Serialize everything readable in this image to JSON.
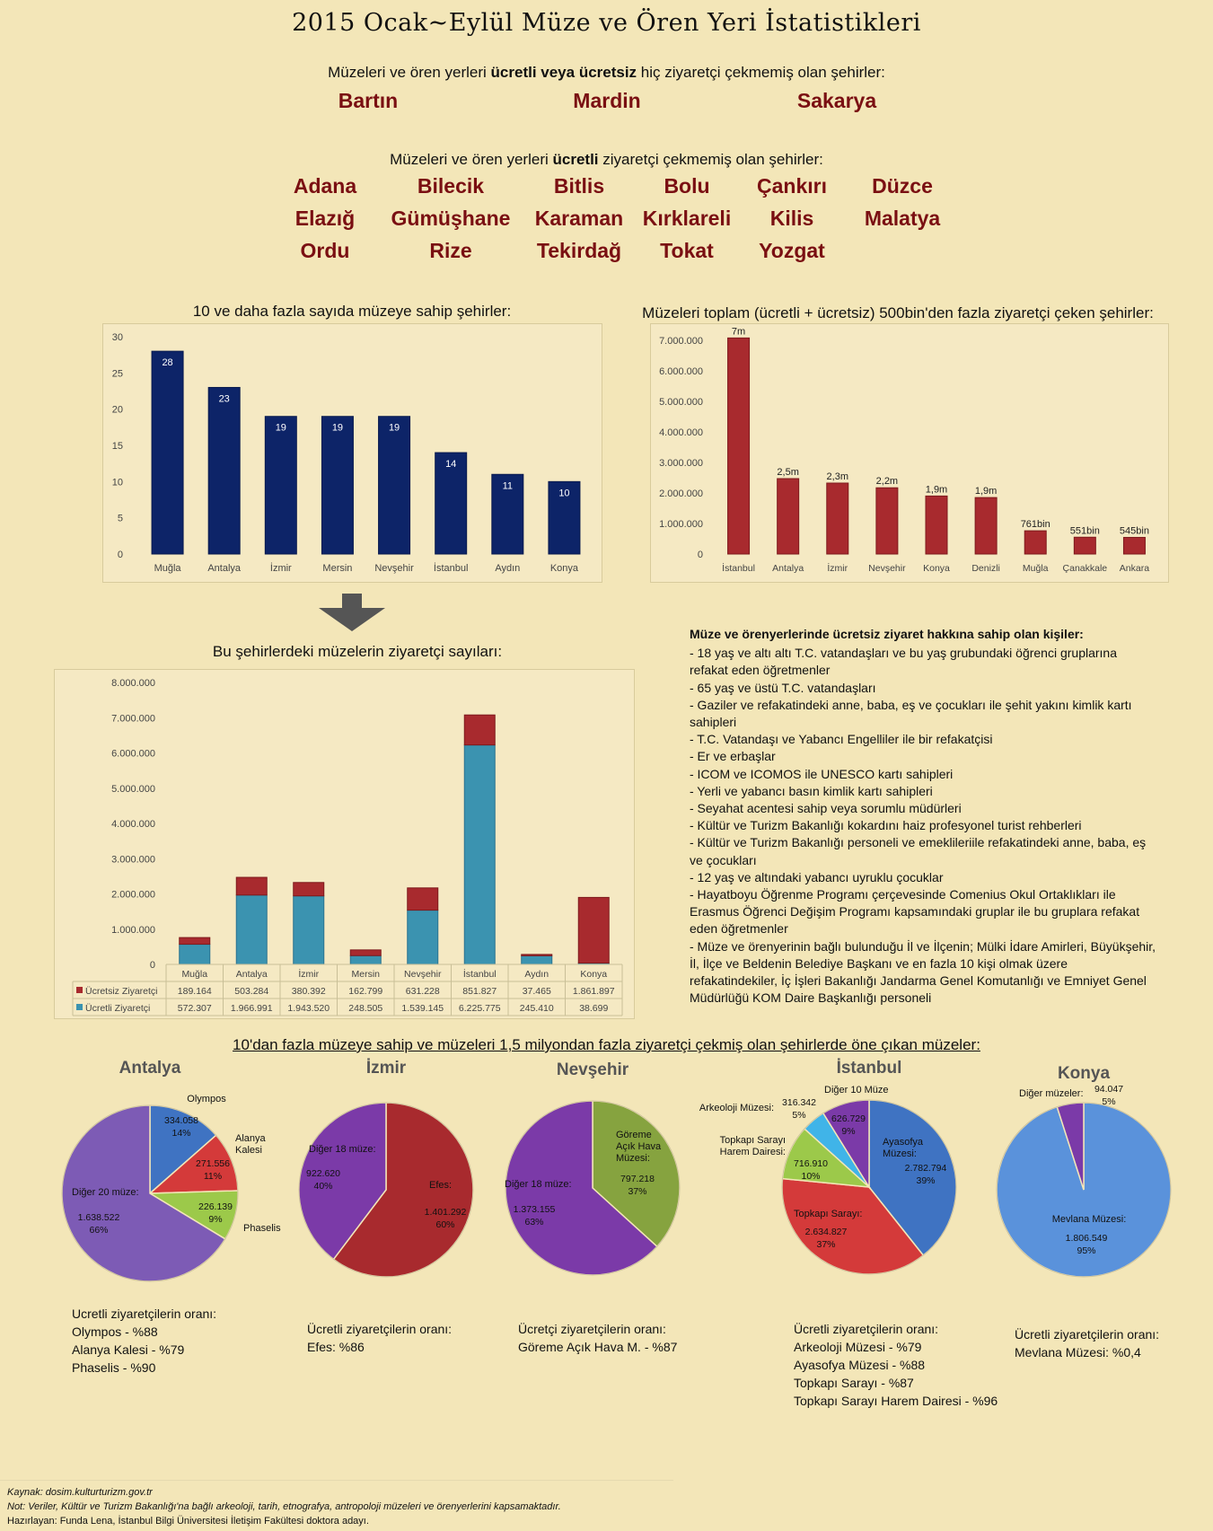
{
  "header": {
    "title": "2015 Ocak~Eylül Müze ve Ören Yeri İstatistikleri",
    "sub1_pre": "Müzeleri ve ören yerleri ",
    "sub1_bold": "ücretli veya ücretsiz",
    "sub1_post": " hiç ziyaretçi çekmemiş olan şehirler:",
    "cities_none": [
      "Bartın",
      "Mardin",
      "Sakarya"
    ],
    "sub2_pre": "Müzeleri ve ören yerleri ",
    "sub2_bold": "ücretli",
    "sub2_post": " ziyaretçi çekmemiş olan şehirler:",
    "cities_paid_none": [
      "Adana",
      "Bilecik",
      "Bitlis",
      "Bolu",
      "Çankırı",
      "Düzce",
      "Elazığ",
      "Gümüşhane",
      "Karaman",
      "Kırklareli",
      "Kilis",
      "Malatya",
      "Ordu",
      "Rize",
      "Tekirdağ",
      "Tokat",
      "Yozgat"
    ]
  },
  "colors": {
    "navy": "#0d2468",
    "red": "#a82a2e",
    "teal": "#3b93b0",
    "darkred": "#a82a2e",
    "blue": "#3f73c2",
    "crimson": "#d43a3a",
    "green": "#9cc94a",
    "purple": "#7b3aa8",
    "lightblue": "#40b4e8",
    "olive": "#86a33f",
    "lavender": "#7d5bb5",
    "pieblue": "#5a92db"
  },
  "chart_data": [
    {
      "type": "bar",
      "title": "10 ve daha fazla sayıda müzeye sahip şehirler:",
      "categories": [
        "Muğla",
        "Antalya",
        "İzmir",
        "Mersin",
        "Nevşehir",
        "İstanbul",
        "Aydın",
        "Konya"
      ],
      "values": [
        28,
        23,
        19,
        19,
        19,
        14,
        11,
        10
      ],
      "ylim": [
        0,
        30
      ],
      "yticks": [
        "0",
        "5",
        "10",
        "15",
        "20",
        "25",
        "30"
      ],
      "grid": false
    },
    {
      "type": "bar",
      "title": "Müzeleri toplam (ücretli + ücretsiz) 500bin'den fazla ziyaretçi çeken şehirler:",
      "categories": [
        "İstanbul",
        "Antalya",
        "İzmir",
        "Nevşehir",
        "Konya",
        "Denizli",
        "Muğla",
        "Çanakkale",
        "Ankara"
      ],
      "values": [
        7077602,
        2470275,
        2323912,
        2170373,
        1900596,
        1850000,
        761471,
        551000,
        545000
      ],
      "labels": [
        "7m",
        "2,5m",
        "2,3m",
        "2,2m",
        "1,9m",
        "1,9m",
        "761bin",
        "551bin",
        "545bin"
      ],
      "ylim": [
        0,
        7000000
      ],
      "yticks": [
        "0",
        "1.000.000",
        "2.000.000",
        "3.000.000",
        "4.000.000",
        "5.000.000",
        "6.000.000",
        "7.000.000"
      ],
      "grid": false
    },
    {
      "type": "bar",
      "stacked": true,
      "title": "Bu şehirlerdeki müzelerin ziyaretçi sayıları:",
      "categories": [
        "Muğla",
        "Antalya",
        "İzmir",
        "Mersin",
        "Nevşehir",
        "İstanbul",
        "Aydın",
        "Konya"
      ],
      "series": [
        {
          "name": "Ücretli Ziyaretçi",
          "values": [
            572307,
            1966991,
            1943520,
            248505,
            1539145,
            6225775,
            245410,
            38699
          ],
          "labels": [
            "572.307",
            "1.966.991",
            "1.943.520",
            "248.505",
            "1.539.145",
            "6.225.775",
            "245.410",
            "38.699"
          ]
        },
        {
          "name": "Ücretsiz Ziyaretçi",
          "values": [
            189164,
            503284,
            380392,
            162799,
            631228,
            851827,
            37465,
            1861897
          ],
          "labels": [
            "189.164",
            "503.284",
            "380.392",
            "162.799",
            "631.228",
            "851.827",
            "37.465",
            "1.861.897"
          ]
        }
      ],
      "ylim": [
        0,
        8000000
      ],
      "yticks": [
        "0",
        "1.000.000",
        "2.000.000",
        "3.000.000",
        "4.000.000",
        "5.000.000",
        "6.000.000",
        "7.000.000",
        "8.000.000"
      ],
      "legend": "bottom-table"
    },
    {
      "type": "pie",
      "title": "Antalya",
      "slices": [
        {
          "name": "Olympos",
          "value": 334058,
          "vlabel": "334.058",
          "pct": "14%"
        },
        {
          "name": "Alanya Kalesi",
          "value": 271556,
          "vlabel": "271.556",
          "pct": "11%"
        },
        {
          "name": "Phaselis",
          "value": 226139,
          "vlabel": "226.139",
          "pct": "9%"
        },
        {
          "name": "Diğer 20 müze:",
          "value": 1638522,
          "vlabel": "1.638.522",
          "pct": "66%"
        }
      ]
    },
    {
      "type": "pie",
      "title": "İzmir",
      "slices": [
        {
          "name": "Efes:",
          "value": 1401292,
          "vlabel": "1.401.292",
          "pct": "60%"
        },
        {
          "name": "Diğer 18 müze:",
          "value": 922620,
          "vlabel": "922.620",
          "pct": "40%"
        }
      ]
    },
    {
      "type": "pie",
      "title": "Nevşehir",
      "slices": [
        {
          "name": "Göreme Açık Hava Müzesi:",
          "value": 797218,
          "vlabel": "797.218",
          "pct": "37%"
        },
        {
          "name": "Diğer 18 müze:",
          "value": 1373155,
          "vlabel": "1.373.155",
          "pct": "63%"
        }
      ]
    },
    {
      "type": "pie",
      "title": "İstanbul",
      "slices": [
        {
          "name": "Ayasofya Müzesi:",
          "value": 2782794,
          "vlabel": "2.782.794",
          "pct": "39%"
        },
        {
          "name": "Topkapı Sarayı:",
          "value": 2634827,
          "vlabel": "2.634.827",
          "pct": "37%"
        },
        {
          "name": "Topkapı Sarayı Harem Dairesi:",
          "value": 716910,
          "vlabel": "716.910",
          "pct": "10%"
        },
        {
          "name": "Arkeoloji Müzesi:",
          "value": 316342,
          "vlabel": "316.342",
          "pct": "5%"
        },
        {
          "name": "Diğer 10 Müze",
          "value": 626729,
          "vlabel": "626.729",
          "pct": "9%"
        }
      ]
    },
    {
      "type": "pie",
      "title": "Konya",
      "slices": [
        {
          "name": "Mevlana Müzesi:",
          "value": 1806549,
          "vlabel": "1.806.549",
          "pct": "95%"
        },
        {
          "name": "Diğer müzeler:",
          "value": 94047,
          "vlabel": "94.047",
          "pct": "5%"
        }
      ]
    }
  ],
  "rights": {
    "heading": "Müze ve örenyerlerinde ücretsiz ziyaret hakkına sahip olan kişiler:",
    "items": [
      "- 18 yaş ve altı altı T.C. vatandaşları ve bu yaş grubundaki öğrenci gruplarına refakat eden öğretmenler",
      "- 65 yaş ve üstü T.C. vatandaşları",
      "- Gaziler ve refakatindeki anne, baba, eş ve çocukları ile şehit yakını kimlik kartı sahipleri",
      "- T.C. Vatandaşı ve Yabancı Engelliler ile bir refakatçisi",
      "- Er ve erbaşlar",
      "- ICOM ve ICOMOS ile UNESCO kartı sahipleri",
      "- Yerli ve yabancı basın kimlik kartı sahipleri",
      "- Seyahat acentesi sahip veya sorumlu müdürleri",
      "- Kültür ve Turizm Bakanlığı kokardını haiz profesyonel turist rehberleri",
      "- Kültür ve Turizm Bakanlığı personeli ve emeklileriile refakatindeki anne, baba, eş ve çocukları",
      "- 12 yaş ve altındaki yabancı uyruklu çocuklar",
      "- Hayatboyu Öğrenme Programı çerçevesinde Comenius Okul Ortaklıkları ile Erasmus Öğrenci Değişim Programı kapsamındaki gruplar ile bu gruplara refakat eden öğretmenler",
      "- Müze ve örenyerinin bağlı bulunduğu İl ve İlçenin; Mülki İdare Amirleri, Büyükşehir, İl, İlçe ve Beldenin Belediye Başkanı ve en fazla 10 kişi olmak üzere refakatindekiler, İç İşleri Bakanlığı Jandarma Genel Komutanlığı ve Emniyet Genel Müdürlüğü KOM Daire Başkanlığı personeli"
    ]
  },
  "pies_section_title": "10'dan fazla müzeye sahip ve müzeleri 1,5 milyondan fazla ziyaretçi çekmiş olan şehirlerde öne çıkan müzeler:",
  "notes": [
    {
      "head": "Ucretli ziyaretçilerin oranı:",
      "lines": [
        "Olympos - %88",
        "Alanya Kalesi - %79",
        "Phaselis - %90"
      ]
    },
    {
      "head": "Ücretli ziyaretçilerin oranı:",
      "lines": [
        "Efes: %86"
      ]
    },
    {
      "head": "Ücretçi ziyaretçilerin oranı:",
      "lines": [
        "Göreme Açık Hava M. - %87"
      ]
    },
    {
      "head": "Ücretli ziyaretçilerin oranı:",
      "lines": [
        "Arkeoloji Müzesi - %79",
        "Ayasofya Müzesi - %88",
        "Topkapı Sarayı - %87",
        "Topkapı Sarayı Harem Dairesi - %96"
      ]
    },
    {
      "head": "Ücretli ziyaretçilerin oranı:",
      "lines": [
        "Mevlana Müzesi: %0,4"
      ]
    }
  ],
  "footer": {
    "source": "Kaynak: dosim.kulturturizm.gov.tr",
    "note": "Not: Veriler, Kültür ve Turizm Bakanlığı'na bağlı arkeoloji, tarih, etnografya, antropoloji müzeleri ve örenyerlerini kapsamaktadır.",
    "author": "Hazırlayan: Funda Lena, İstanbul Bilgi Üniversitesi İletişim Fakültesi doktora adayı."
  }
}
